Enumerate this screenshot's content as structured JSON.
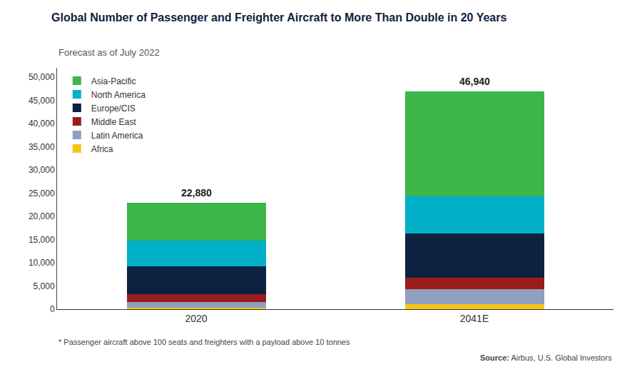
{
  "chart_data": {
    "type": "bar",
    "stacked": true,
    "title": "Global Number of Passenger and Freighter Aircraft to More Than Double in 20 Years",
    "subtitle": "Forecast as of July 2022",
    "footnote": "* Passenger aircraft above 100 seats and freighters with a payload above 10 tonnes",
    "source_label": "Source:",
    "source": "Airbus, U.S. Global Investors",
    "categories": [
      "2020",
      "2041E"
    ],
    "series": [
      {
        "name": "Africa",
        "color": "#F5C518",
        "values": [
          300,
          1100
        ]
      },
      {
        "name": "Latin America",
        "color": "#8E9FBF",
        "values": [
          1200,
          3200
        ]
      },
      {
        "name": "Middle East",
        "color": "#9B1C1C",
        "values": [
          1800,
          2500
        ]
      },
      {
        "name": "Europe/CIS",
        "color": "#0D2240",
        "values": [
          6000,
          9500
        ]
      },
      {
        "name": "North America",
        "color": "#00B0C8",
        "values": [
          5500,
          8000
        ]
      },
      {
        "name": "Asia-Pacific",
        "color": "#3CB54A",
        "values": [
          8080,
          22640
        ]
      }
    ],
    "totals": {
      "values": [
        22880,
        46940
      ],
      "value_labels": [
        "22,880",
        "46,940"
      ]
    },
    "ylim": [
      0,
      52000
    ],
    "yticks": [
      0,
      {
        "value": 5000,
        "label": "5,000"
      },
      {
        "value": 10000,
        "label": "10,000"
      },
      {
        "value": 15000,
        "label": "15,000"
      },
      {
        "value": 20000,
        "label": "20,000"
      },
      {
        "value": 25000,
        "label": "25,000"
      },
      {
        "value": 30000,
        "label": "30,000"
      },
      {
        "value": 35000,
        "label": "35,000"
      },
      {
        "value": 40000,
        "label": "40,000"
      },
      {
        "value": 45000,
        "label": "45,000"
      },
      {
        "value": 50000,
        "label": "50,000"
      }
    ],
    "grid": false,
    "legend": "upper left"
  }
}
